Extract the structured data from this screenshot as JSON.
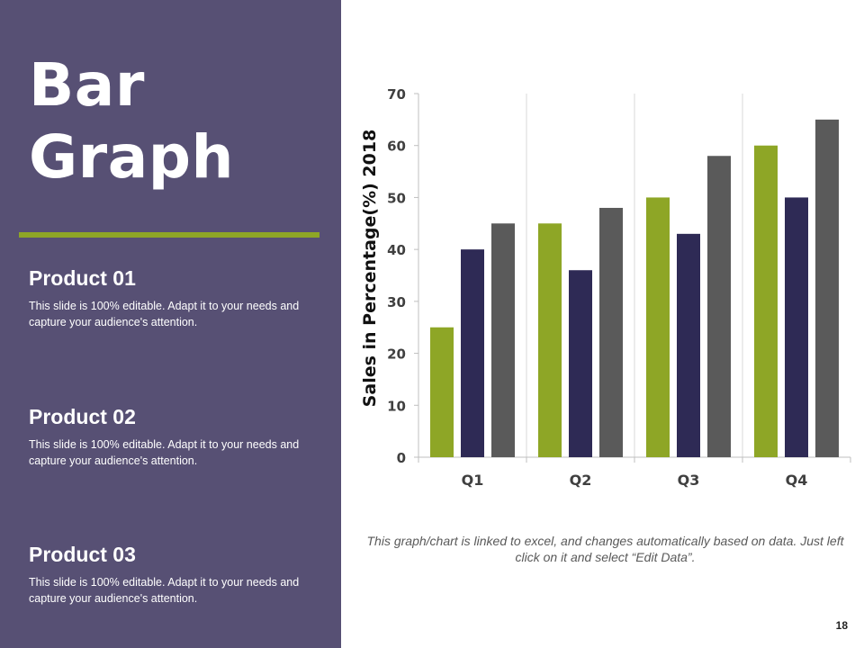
{
  "slide": {
    "title_line1": "Bar",
    "title_line2": "Graph",
    "page_number": "18",
    "footnote": "This graph/chart is linked to excel, and changes automatically based on data. Just left click on it and select “Edit Data”."
  },
  "products": [
    {
      "title": "Product 01",
      "description": "This slide is 100% editable. Adapt it to your needs and capture your audience's attention."
    },
    {
      "title": "Product 02",
      "description": "This slide is 100% editable. Adapt it to your needs and capture your audience's attention."
    },
    {
      "title": "Product 03",
      "description": "This slide is 100% editable. Adapt it to your needs and capture your audience's attention."
    }
  ],
  "colors": {
    "panel": "#575074",
    "accent": "#8ea626",
    "series1": "#8ea626",
    "series2": "#2e2a55",
    "series3": "#5a5a5a"
  },
  "chart_data": {
    "type": "bar",
    "categories": [
      "Q1",
      "Q2",
      "Q3",
      "Q4"
    ],
    "series": [
      {
        "values": [
          25,
          45,
          50,
          60
        ]
      },
      {
        "values": [
          40,
          36,
          43,
          50
        ]
      },
      {
        "values": [
          45,
          48,
          58,
          65
        ]
      }
    ],
    "ylabel": "Sales in Percentage(%) 2018",
    "xlabel": "",
    "ylim": [
      0,
      70
    ],
    "yticks": [
      0,
      10,
      20,
      30,
      40,
      50,
      60,
      70
    ],
    "grid": "vertical",
    "legend": "none"
  }
}
